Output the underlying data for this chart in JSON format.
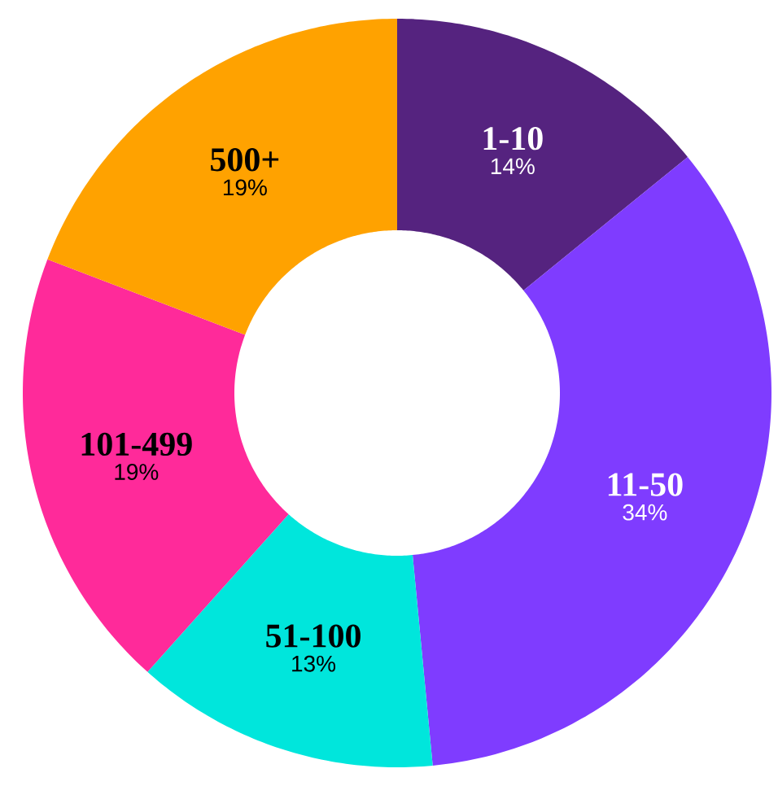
{
  "chart_data": {
    "type": "donut",
    "categories": [
      "1-10",
      "11-50",
      "51-100",
      "101-499",
      "500+"
    ],
    "values": [
      14,
      34,
      13,
      19,
      19
    ],
    "colors": [
      "#55237f",
      "#7f3cff",
      "#00e6dc",
      "#ff2a9a",
      "#ffa200"
    ],
    "value_labels": [
      "14%",
      "34%",
      "13%",
      "19%",
      "19%"
    ]
  }
}
